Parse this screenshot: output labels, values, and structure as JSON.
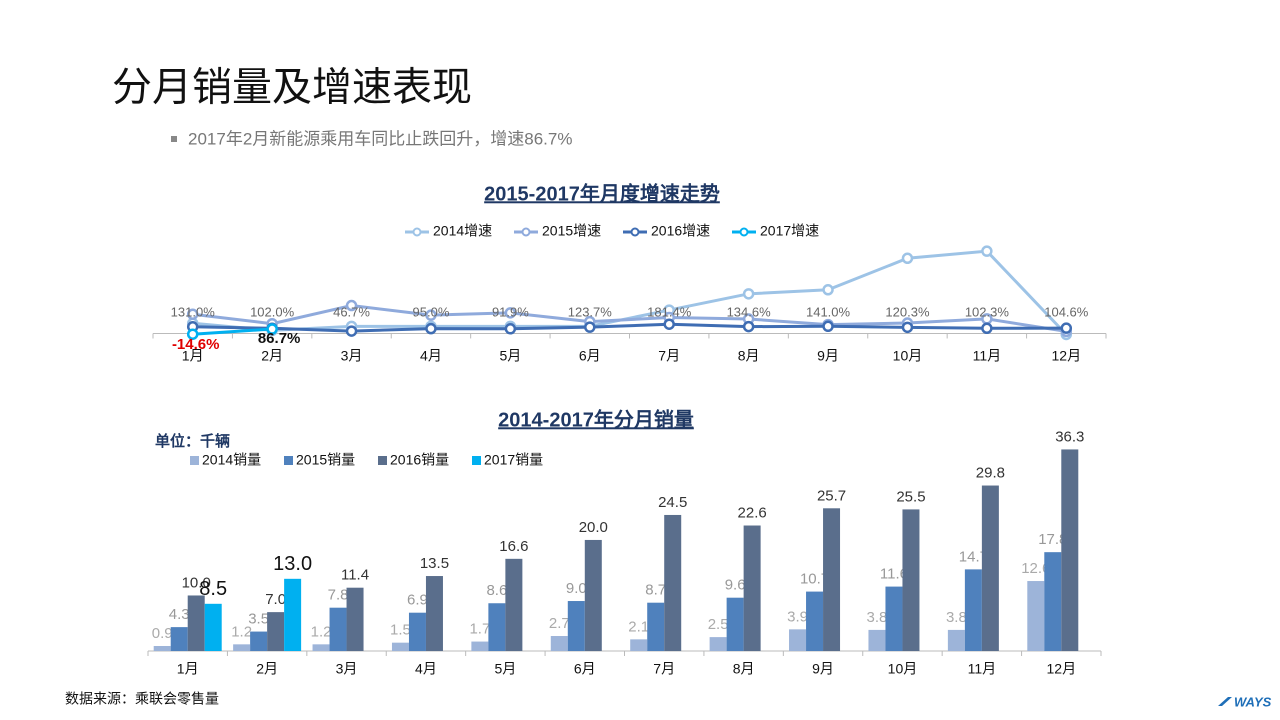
{
  "title": "分月销量及增速表现",
  "bullet": "2017年2月新能源乘用车同比止跌回升，增速86.7%",
  "source": "数据来源：乘联会零售量",
  "logo": "WAYS",
  "chart_data": [
    {
      "type": "line",
      "title": "2015-2017年月度增速走势",
      "categories": [
        "1月",
        "2月",
        "3月",
        "4月",
        "5月",
        "6月",
        "7月",
        "8月",
        "9月",
        "10月",
        "11月",
        "12月"
      ],
      "ylim": [
        -50,
        1800
      ],
      "series": [
        {
          "name": "2014增速",
          "color": "#9dc3e6",
          "values": [
            200,
            60,
            140,
            140,
            140,
            140,
            460,
            780,
            860,
            1480,
            1620,
            -20
          ]
        },
        {
          "name": "2015增速",
          "color": "#8faadc",
          "values": [
            378,
            192,
            550,
            360,
            406,
            233,
            314,
            284,
            174,
            205,
            287,
            41
          ]
        },
        {
          "name": "2016增速",
          "color": "#3f6db3",
          "values": [
            131.0,
            102.0,
            46.7,
            95.0,
            91.9,
            123.7,
            181.4,
            134.6,
            141.0,
            120.3,
            102.3,
            104.6
          ],
          "value_labels": [
            "131.0%",
            "102.0%",
            "46.7%",
            "95.0%",
            "91.9%",
            "123.7%",
            "181.4%",
            "134.6%",
            "141.0%",
            "120.3%",
            "102.3%",
            "104.6%"
          ]
        },
        {
          "name": "2017增速",
          "color": "#00b0f0",
          "values": [
            -14.6,
            86.7,
            null,
            null,
            null,
            null,
            null,
            null,
            null,
            null,
            null,
            null
          ],
          "value_labels": [
            "-14.6%",
            "86.7%",
            null,
            null,
            null,
            null,
            null,
            null,
            null,
            null,
            null,
            null
          ]
        }
      ]
    },
    {
      "type": "bar",
      "title": "2014-2017年分月销量",
      "unit": "单位：千辆",
      "categories": [
        "1月",
        "2月",
        "3月",
        "4月",
        "5月",
        "6月",
        "7月",
        "8月",
        "9月",
        "10月",
        "11月",
        "12月"
      ],
      "ylim": [
        0,
        38
      ],
      "series": [
        {
          "name": "2014销量",
          "color": "#9db4d9",
          "values": [
            0.9,
            1.2,
            1.2,
            1.5,
            1.7,
            2.7,
            2.1,
            2.5,
            3.9,
            3.8,
            3.8,
            12.6
          ],
          "value_labels": [
            "0.9",
            "1.2",
            "1.2",
            "1.5",
            "1.7",
            "2.7",
            "2.1",
            "2.5",
            "3.9",
            "3.8",
            "3.8",
            "12.6"
          ]
        },
        {
          "name": "2015销量",
          "color": "#4f81bd",
          "values": [
            4.3,
            3.5,
            7.8,
            6.9,
            8.6,
            9.0,
            8.7,
            9.6,
            10.7,
            11.6,
            14.7,
            17.8
          ],
          "value_labels": [
            "4.3",
            "3.5",
            "7.8",
            "6.9",
            "8.6",
            "9.0",
            "8.7",
            "9.6",
            "10.7",
            "11.6",
            "14.7",
            "17.8"
          ]
        },
        {
          "name": "2016销量",
          "color": "#5a6e8c",
          "values": [
            10.0,
            7.0,
            11.4,
            13.5,
            16.6,
            20.0,
            24.5,
            22.6,
            25.7,
            25.5,
            29.8,
            36.3
          ],
          "value_labels": [
            "10.0",
            "7.0",
            "11.4",
            "13.5",
            "16.6",
            "20.0",
            "24.5",
            "22.6",
            "25.7",
            "25.5",
            "29.8",
            "36.3"
          ]
        },
        {
          "name": "2017销量",
          "color": "#00b0f0",
          "values": [
            8.5,
            13.0,
            null,
            null,
            null,
            null,
            null,
            null,
            null,
            null,
            null,
            null
          ],
          "value_labels": [
            "8.5",
            "13.0",
            null,
            null,
            null,
            null,
            null,
            null,
            null,
            null,
            null,
            null
          ]
        }
      ]
    }
  ]
}
